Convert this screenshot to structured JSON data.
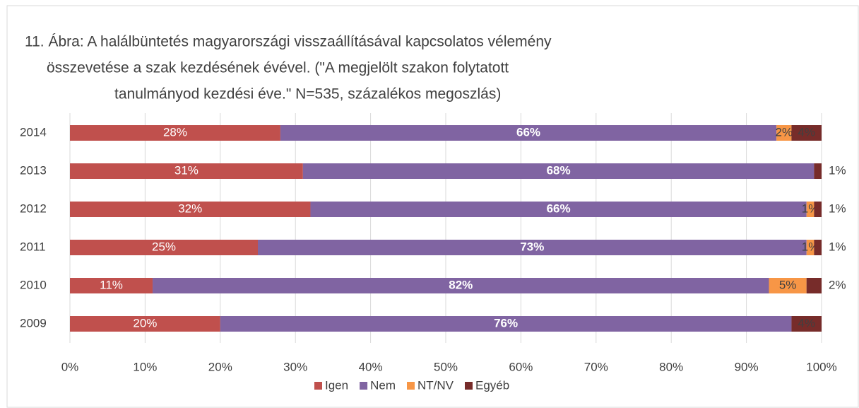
{
  "chart_data": {
    "type": "stacked-bar-horizontal",
    "title": [
      "11. Ábra: A halálbüntetés magyarországi visszaállításával kapcsolatos vélemény",
      "összevetése a szak kezdésének évével. (\"A megjelölt szakon folytatott",
      "tanulmányod kezdési éve.\" N=535, százalékos megoszlás)"
    ],
    "categories": [
      "2014",
      "2013",
      "2012",
      "2011",
      "2010",
      "2009"
    ],
    "series": [
      {
        "name": "Igen",
        "color": "#c0504d",
        "values": [
          28,
          31,
          32,
          25,
          11,
          20
        ],
        "value_labels": [
          "28%",
          "31%",
          "32%",
          "25%",
          "11%",
          "20%"
        ]
      },
      {
        "name": "Nem",
        "color": "#8064a2",
        "values": [
          66,
          68,
          66,
          73,
          82,
          76
        ],
        "value_labels": [
          "66%",
          "68%",
          "66%",
          "73%",
          "82%",
          "76%"
        ]
      },
      {
        "name": "NT/NV",
        "color": "#f79646",
        "values": [
          2,
          null,
          1,
          1,
          5,
          null
        ],
        "value_labels": [
          "2%",
          null,
          "1%",
          "1%",
          "5%",
          null
        ]
      },
      {
        "name": "Egyéb",
        "color": "#772c2a",
        "values": [
          4,
          1,
          1,
          1,
          2,
          4
        ],
        "value_labels": [
          "4%",
          "1%",
          "1%",
          "1%",
          "2%",
          "4%"
        ]
      }
    ],
    "xlim": [
      0,
      100
    ],
    "xticks": [
      {
        "value": 0,
        "label": "0%"
      },
      {
        "value": 10,
        "label": "10%"
      },
      {
        "value": 20,
        "label": "20%"
      },
      {
        "value": 30,
        "label": "30%"
      },
      {
        "value": 40,
        "label": "40%"
      },
      {
        "value": 50,
        "label": "50%"
      },
      {
        "value": 60,
        "label": "60%"
      },
      {
        "value": 70,
        "label": "70%"
      },
      {
        "value": 80,
        "label": "80%"
      },
      {
        "value": 90,
        "label": "90%"
      },
      {
        "value": 100,
        "label": "100%"
      }
    ],
    "grid": true,
    "legend": "bottom"
  }
}
